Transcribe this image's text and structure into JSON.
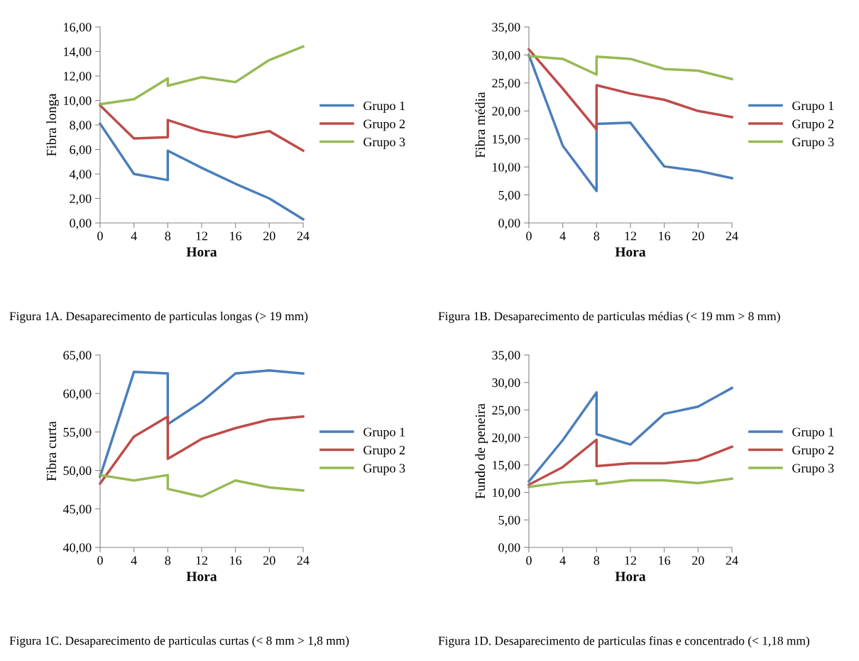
{
  "chart_data": [
    {
      "type": "line",
      "xlabel": "Hora",
      "ylabel": "Fibra longa",
      "xlim": [
        0,
        24
      ],
      "xticks": [
        0,
        4,
        8,
        12,
        16,
        20,
        24
      ],
      "ylim": [
        0,
        16
      ],
      "yticks": [
        {
          "value": 0,
          "label": "0,00"
        },
        {
          "value": 2,
          "label": "2,00"
        },
        {
          "value": 4,
          "label": "4,00"
        },
        {
          "value": 6,
          "label": "6,00"
        },
        {
          "value": 8,
          "label": "8,00"
        },
        {
          "value": 10,
          "label": "10,00"
        },
        {
          "value": 12,
          "label": "12,00"
        },
        {
          "value": 14,
          "label": "14,00"
        },
        {
          "value": 16,
          "label": "16,00"
        }
      ],
      "legend": "right",
      "grid": false,
      "marker": "none",
      "line_style": "solid",
      "annotations": [
        "Figura 1A. Desaparecimento de particulas longas (> 19 mm)"
      ],
      "series": [
        {
          "name": "Grupo 1",
          "color": "#4a7ebb",
          "x": [
            0,
            4,
            8,
            8,
            12,
            16,
            20,
            24
          ],
          "values": [
            8.1,
            4.0,
            3.5,
            5.9,
            4.5,
            3.2,
            2.0,
            0.3
          ]
        },
        {
          "name": "Grupo 2",
          "color": "#be4b48",
          "x": [
            0,
            4,
            8,
            8,
            12,
            16,
            20,
            24
          ],
          "values": [
            9.6,
            6.9,
            7.0,
            8.4,
            7.5,
            7.0,
            7.5,
            5.9
          ]
        },
        {
          "name": "Grupo 3",
          "color": "#98b954",
          "x": [
            0,
            4,
            8,
            8,
            12,
            16,
            20,
            24
          ],
          "values": [
            9.7,
            10.1,
            11.8,
            11.2,
            11.9,
            11.5,
            13.3,
            14.4
          ]
        }
      ]
    },
    {
      "type": "line",
      "xlabel": "Hora",
      "ylabel": "Fibra média",
      "xlim": [
        0,
        24
      ],
      "xticks": [
        0,
        4,
        8,
        12,
        16,
        20,
        24
      ],
      "ylim": [
        0,
        35
      ],
      "yticks": [
        {
          "value": 0,
          "label": "0,00"
        },
        {
          "value": 5,
          "label": "5,00"
        },
        {
          "value": 10,
          "label": "10,00"
        },
        {
          "value": 15,
          "label": "15,00"
        },
        {
          "value": 20,
          "label": "20,00"
        },
        {
          "value": 25,
          "label": "25,00"
        },
        {
          "value": 30,
          "label": "30,00"
        },
        {
          "value": 35,
          "label": "35,00"
        }
      ],
      "legend": "right",
      "grid": false,
      "marker": "none",
      "line_style": "solid",
      "annotations": [
        "Figura 1B. Desaparecimento de particulas médias (< 19 mm > 8 mm)"
      ],
      "series": [
        {
          "name": "Grupo 1",
          "color": "#4a7ebb",
          "x": [
            0,
            4,
            8,
            8,
            12,
            16,
            20,
            24
          ],
          "values": [
            30.0,
            13.8,
            5.7,
            17.7,
            17.9,
            10.1,
            9.3,
            8.0
          ]
        },
        {
          "name": "Grupo 2",
          "color": "#be4b48",
          "x": [
            0,
            4,
            8,
            8,
            12,
            16,
            20,
            24
          ],
          "values": [
            31.0,
            24.0,
            16.7,
            24.6,
            23.1,
            22.0,
            20.0,
            18.9
          ]
        },
        {
          "name": "Grupo 3",
          "color": "#98b954",
          "x": [
            0,
            4,
            8,
            8,
            12,
            16,
            20,
            24
          ],
          "values": [
            29.8,
            29.3,
            26.5,
            29.7,
            29.3,
            27.5,
            27.2,
            25.7
          ]
        }
      ]
    },
    {
      "type": "line",
      "xlabel": "Hora",
      "ylabel": "Fibra curta",
      "xlim": [
        0,
        24
      ],
      "xticks": [
        0,
        4,
        8,
        12,
        16,
        20,
        24
      ],
      "ylim": [
        40,
        65
      ],
      "yticks": [
        {
          "value": 40,
          "label": "40,00"
        },
        {
          "value": 45,
          "label": "45,00"
        },
        {
          "value": 50,
          "label": "50,00"
        },
        {
          "value": 55,
          "label": "55,00"
        },
        {
          "value": 60,
          "label": "60,00"
        },
        {
          "value": 65,
          "label": "65,00"
        }
      ],
      "legend": "right",
      "grid": false,
      "marker": "none",
      "line_style": "solid",
      "annotations": [
        "Figura 1C. Desaparecimento de particulas curtas (< 8 mm > 1,8 mm)"
      ],
      "series": [
        {
          "name": "Grupo 1",
          "color": "#4a7ebb",
          "x": [
            0,
            4,
            8,
            8,
            12,
            16,
            20,
            24
          ],
          "values": [
            49.2,
            62.8,
            62.6,
            56.0,
            58.9,
            62.6,
            63.0,
            62.6
          ]
        },
        {
          "name": "Grupo 2",
          "color": "#be4b48",
          "x": [
            0,
            4,
            8,
            8,
            12,
            16,
            20,
            24
          ],
          "values": [
            48.3,
            54.4,
            57.0,
            51.5,
            54.1,
            55.5,
            56.6,
            57.0
          ]
        },
        {
          "name": "Grupo 3",
          "color": "#98b954",
          "x": [
            0,
            4,
            8,
            8,
            12,
            16,
            20,
            24
          ],
          "values": [
            49.4,
            48.7,
            49.4,
            47.6,
            46.6,
            48.7,
            47.8,
            47.4
          ]
        }
      ]
    },
    {
      "type": "line",
      "xlabel": "Hora",
      "ylabel": "Fundo de peneira",
      "xlim": [
        0,
        24
      ],
      "xticks": [
        0,
        4,
        8,
        12,
        16,
        20,
        24
      ],
      "ylim": [
        0,
        35
      ],
      "yticks": [
        {
          "value": 0,
          "label": "0,00"
        },
        {
          "value": 5,
          "label": "5,00"
        },
        {
          "value": 10,
          "label": "10,00"
        },
        {
          "value": 15,
          "label": "15,00"
        },
        {
          "value": 20,
          "label": "20,00"
        },
        {
          "value": 25,
          "label": "25,00"
        },
        {
          "value": 30,
          "label": "30,00"
        },
        {
          "value": 35,
          "label": "35,00"
        }
      ],
      "legend": "right",
      "grid": false,
      "marker": "none",
      "line_style": "solid",
      "annotations": [
        "Figura 1D. Desaparecimento de particulas finas e concentrado (< 1,18 mm)"
      ],
      "series": [
        {
          "name": "Grupo 1",
          "color": "#4a7ebb",
          "x": [
            0,
            4,
            8,
            8,
            12,
            16,
            20,
            24
          ],
          "values": [
            12.0,
            19.5,
            28.2,
            20.6,
            18.7,
            24.3,
            25.6,
            29.0
          ]
        },
        {
          "name": "Grupo 2",
          "color": "#be4b48",
          "x": [
            0,
            4,
            8,
            8,
            12,
            16,
            20,
            24
          ],
          "values": [
            11.4,
            14.6,
            19.6,
            14.8,
            15.3,
            15.3,
            15.9,
            18.3
          ]
        },
        {
          "name": "Grupo 3",
          "color": "#98b954",
          "x": [
            0,
            4,
            8,
            8,
            12,
            16,
            20,
            24
          ],
          "values": [
            11.0,
            11.8,
            12.2,
            11.5,
            12.2,
            12.2,
            11.7,
            12.5
          ]
        }
      ]
    }
  ]
}
